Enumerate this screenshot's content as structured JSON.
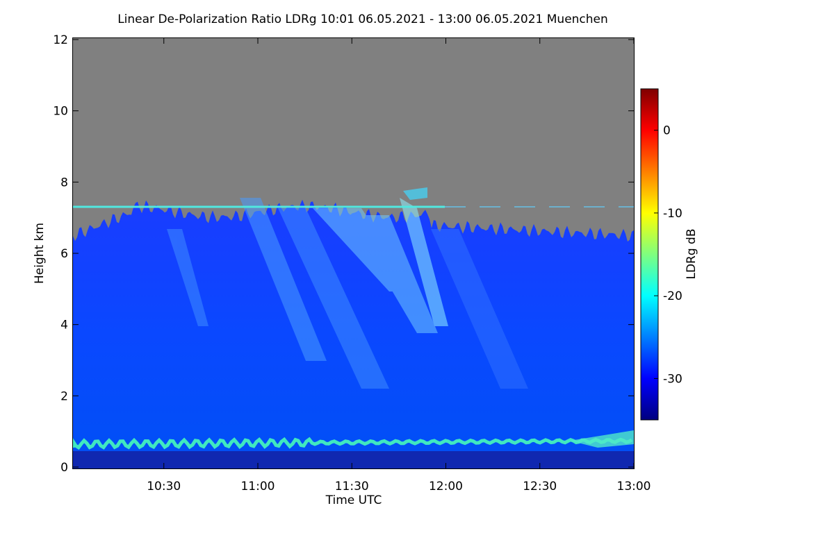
{
  "chart_data": {
    "type": "heatmap",
    "title": "Linear De-Polarization Ratio LDRg   10:01 06.05.2021 - 13:00 06.05.2021 Muenchen",
    "x_label": "Time UTC",
    "y_label": "Height km",
    "xlim": [
      601,
      780
    ],
    "xticks": [
      {
        "value": 630,
        "label": "10:30"
      },
      {
        "value": 660,
        "label": "11:00"
      },
      {
        "value": 690,
        "label": "11:30"
      },
      {
        "value": 720,
        "label": "12:00"
      },
      {
        "value": 750,
        "label": "12:30"
      },
      {
        "value": 780,
        "label": "13:00"
      }
    ],
    "ylim": [
      0,
      12
    ],
    "yticks": [
      0,
      2,
      4,
      6,
      8,
      10,
      12
    ],
    "colorbar": {
      "label": "LDRg dB",
      "lim": [
        -35,
        5
      ],
      "ticks": [
        -30,
        -20,
        -10,
        0
      ],
      "colormap": "jet"
    }
  }
}
